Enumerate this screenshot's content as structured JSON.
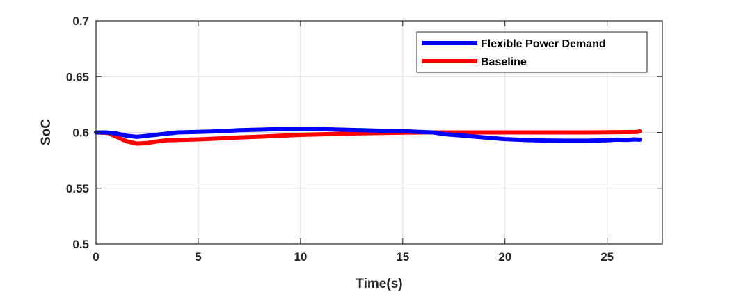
{
  "chart_data": {
    "type": "line",
    "xlabel": "Time(s)",
    "ylabel": "SoC",
    "xlim": [
      0,
      27.7
    ],
    "ylim": [
      0.5,
      0.7
    ],
    "xticks": [
      0,
      5,
      10,
      15,
      20,
      25
    ],
    "yticks": [
      0.5,
      0.55,
      0.6,
      0.65,
      0.7
    ],
    "xtick_labels": [
      "0",
      "5",
      "10",
      "15",
      "20",
      "25"
    ],
    "ytick_labels": [
      "0.5",
      "0.55",
      "0.6",
      "0.65",
      "0.7"
    ],
    "grid": true,
    "legend_position": "top-right",
    "series": [
      {
        "name": "Flexible Power Demand",
        "color": "#0000ff",
        "x": [
          0,
          0.5,
          1,
          1.5,
          2,
          2.5,
          3,
          3.5,
          4,
          5,
          6,
          7,
          8,
          9,
          10,
          11,
          12,
          13,
          14,
          15,
          15.8,
          16.5,
          17,
          18,
          19,
          20,
          21,
          22,
          23,
          24,
          25,
          25.5,
          26,
          26.3,
          26.6
        ],
        "y": [
          0.6,
          0.6,
          0.599,
          0.597,
          0.596,
          0.597,
          0.598,
          0.599,
          0.6,
          0.6005,
          0.601,
          0.602,
          0.6025,
          0.603,
          0.603,
          0.603,
          0.6025,
          0.602,
          0.6015,
          0.6012,
          0.6005,
          0.6,
          0.5985,
          0.597,
          0.5955,
          0.594,
          0.5932,
          0.5928,
          0.5926,
          0.5926,
          0.593,
          0.5935,
          0.5933,
          0.5938,
          0.5935
        ]
      },
      {
        "name": "Baseline",
        "color": "#ff0000",
        "x": [
          0,
          0.6,
          1,
          1.5,
          2,
          2.5,
          3,
          3.5,
          4,
          5,
          6,
          7,
          8,
          9,
          10,
          11,
          12,
          13,
          14,
          15,
          16,
          17,
          18,
          19,
          20,
          21,
          22,
          23,
          24,
          25,
          26,
          26.5,
          26.6
        ],
        "y": [
          0.6,
          0.5995,
          0.596,
          0.592,
          0.59,
          0.5905,
          0.592,
          0.593,
          0.5932,
          0.5938,
          0.5945,
          0.5955,
          0.5962,
          0.597,
          0.5978,
          0.5983,
          0.5988,
          0.5992,
          0.5995,
          0.5998,
          0.6,
          0.6,
          0.6,
          0.6,
          0.6,
          0.6,
          0.6,
          0.6,
          0.6,
          0.6002,
          0.6003,
          0.6005,
          0.601
        ]
      }
    ]
  }
}
